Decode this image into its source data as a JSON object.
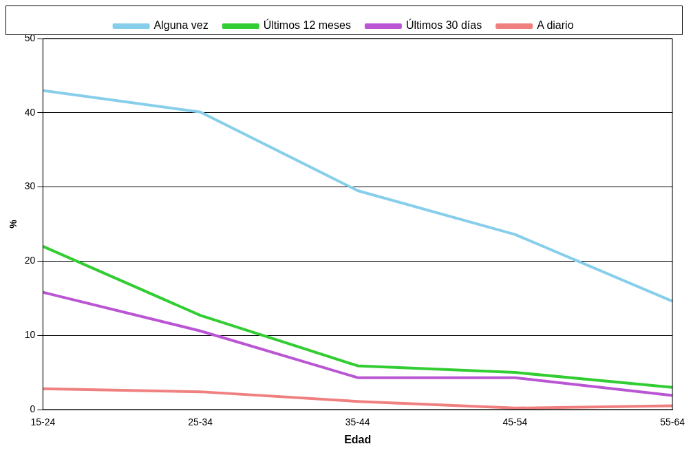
{
  "chart_data": {
    "type": "line",
    "xlabel": "Edad",
    "ylabel": "%",
    "categories": [
      "15-24",
      "25-34",
      "35-44",
      "45-54",
      "55-64"
    ],
    "series": [
      {
        "name": "Alguna vez",
        "color": "#87ceeb",
        "values": [
          43.0,
          40.1,
          29.5,
          23.6,
          14.6
        ]
      },
      {
        "name": "Últimos 12 meses",
        "color": "#32cd32",
        "values": [
          22.0,
          12.7,
          5.9,
          5.0,
          3.0
        ]
      },
      {
        "name": "Últimos 30 días",
        "color": "#ba55d3",
        "values": [
          15.8,
          10.6,
          4.3,
          4.3,
          1.9
        ]
      },
      {
        "name": "A diario",
        "color": "#f08080",
        "values": [
          2.8,
          2.4,
          1.1,
          0.2,
          0.5
        ]
      }
    ],
    "ylim": [
      0,
      50
    ],
    "yticks": [
      0,
      10,
      20,
      30,
      40,
      50
    ],
    "grid": "y",
    "legend": "top",
    "marker": "none",
    "line_style": "solid"
  }
}
